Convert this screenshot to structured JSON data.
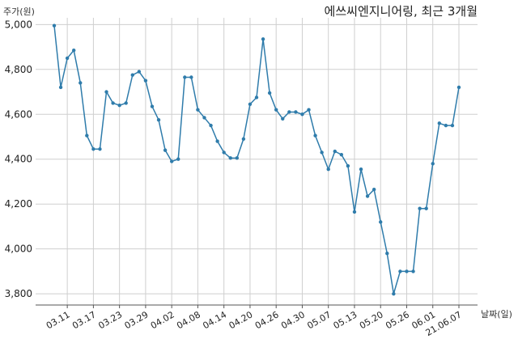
{
  "chart_data": {
    "type": "line",
    "title": "에쓰씨엔지니어링, 최근 3개월",
    "ylabel": "주가(원)",
    "xlabel": "날짜(일)",
    "ylim": [
      3750,
      5030
    ],
    "yticks": [
      3800,
      4000,
      4200,
      4400,
      4600,
      4800,
      5000
    ],
    "ytick_labels": [
      "3,800",
      "4,000",
      "4,200",
      "4,400",
      "4,600",
      "4,800",
      "5,000"
    ],
    "xticks": [
      {
        "index": 2,
        "label": "03.11"
      },
      {
        "index": 6,
        "label": "03.17"
      },
      {
        "index": 10,
        "label": "03.23"
      },
      {
        "index": 14,
        "label": "03.29"
      },
      {
        "index": 18,
        "label": "04.02"
      },
      {
        "index": 22,
        "label": "04.08"
      },
      {
        "index": 26,
        "label": "04.14"
      },
      {
        "index": 30,
        "label": "04.20"
      },
      {
        "index": 34,
        "label": "04.26"
      },
      {
        "index": 38,
        "label": "04.30"
      },
      {
        "index": 42,
        "label": "05.07"
      },
      {
        "index": 46,
        "label": "05.13"
      },
      {
        "index": 50,
        "label": "05.20"
      },
      {
        "index": 54,
        "label": "05.26"
      },
      {
        "index": 58,
        "label": "06.01"
      },
      {
        "index": 62,
        "label": "21.06.07"
      }
    ],
    "grid": true,
    "series": [
      {
        "values": [
          4995,
          4720,
          4850,
          4885,
          4740,
          4505,
          4445,
          4445,
          4700,
          4650,
          4640,
          4650,
          4775,
          4790,
          4750,
          4635,
          4575,
          4440,
          4390,
          4400,
          4765,
          4765,
          4620,
          4585,
          4550,
          4480,
          4430,
          4405,
          4405,
          4490,
          4645,
          4675,
          4935,
          4695,
          4620,
          4580,
          4610,
          4610,
          4600,
          4620,
          4505,
          4430,
          4355,
          4435,
          4420,
          4370,
          4165,
          4355,
          4235,
          4265,
          4120,
          3980,
          3800,
          3900,
          3900,
          3900,
          4180,
          4180,
          4380,
          4560,
          4550,
          4550,
          4720
        ]
      }
    ]
  }
}
